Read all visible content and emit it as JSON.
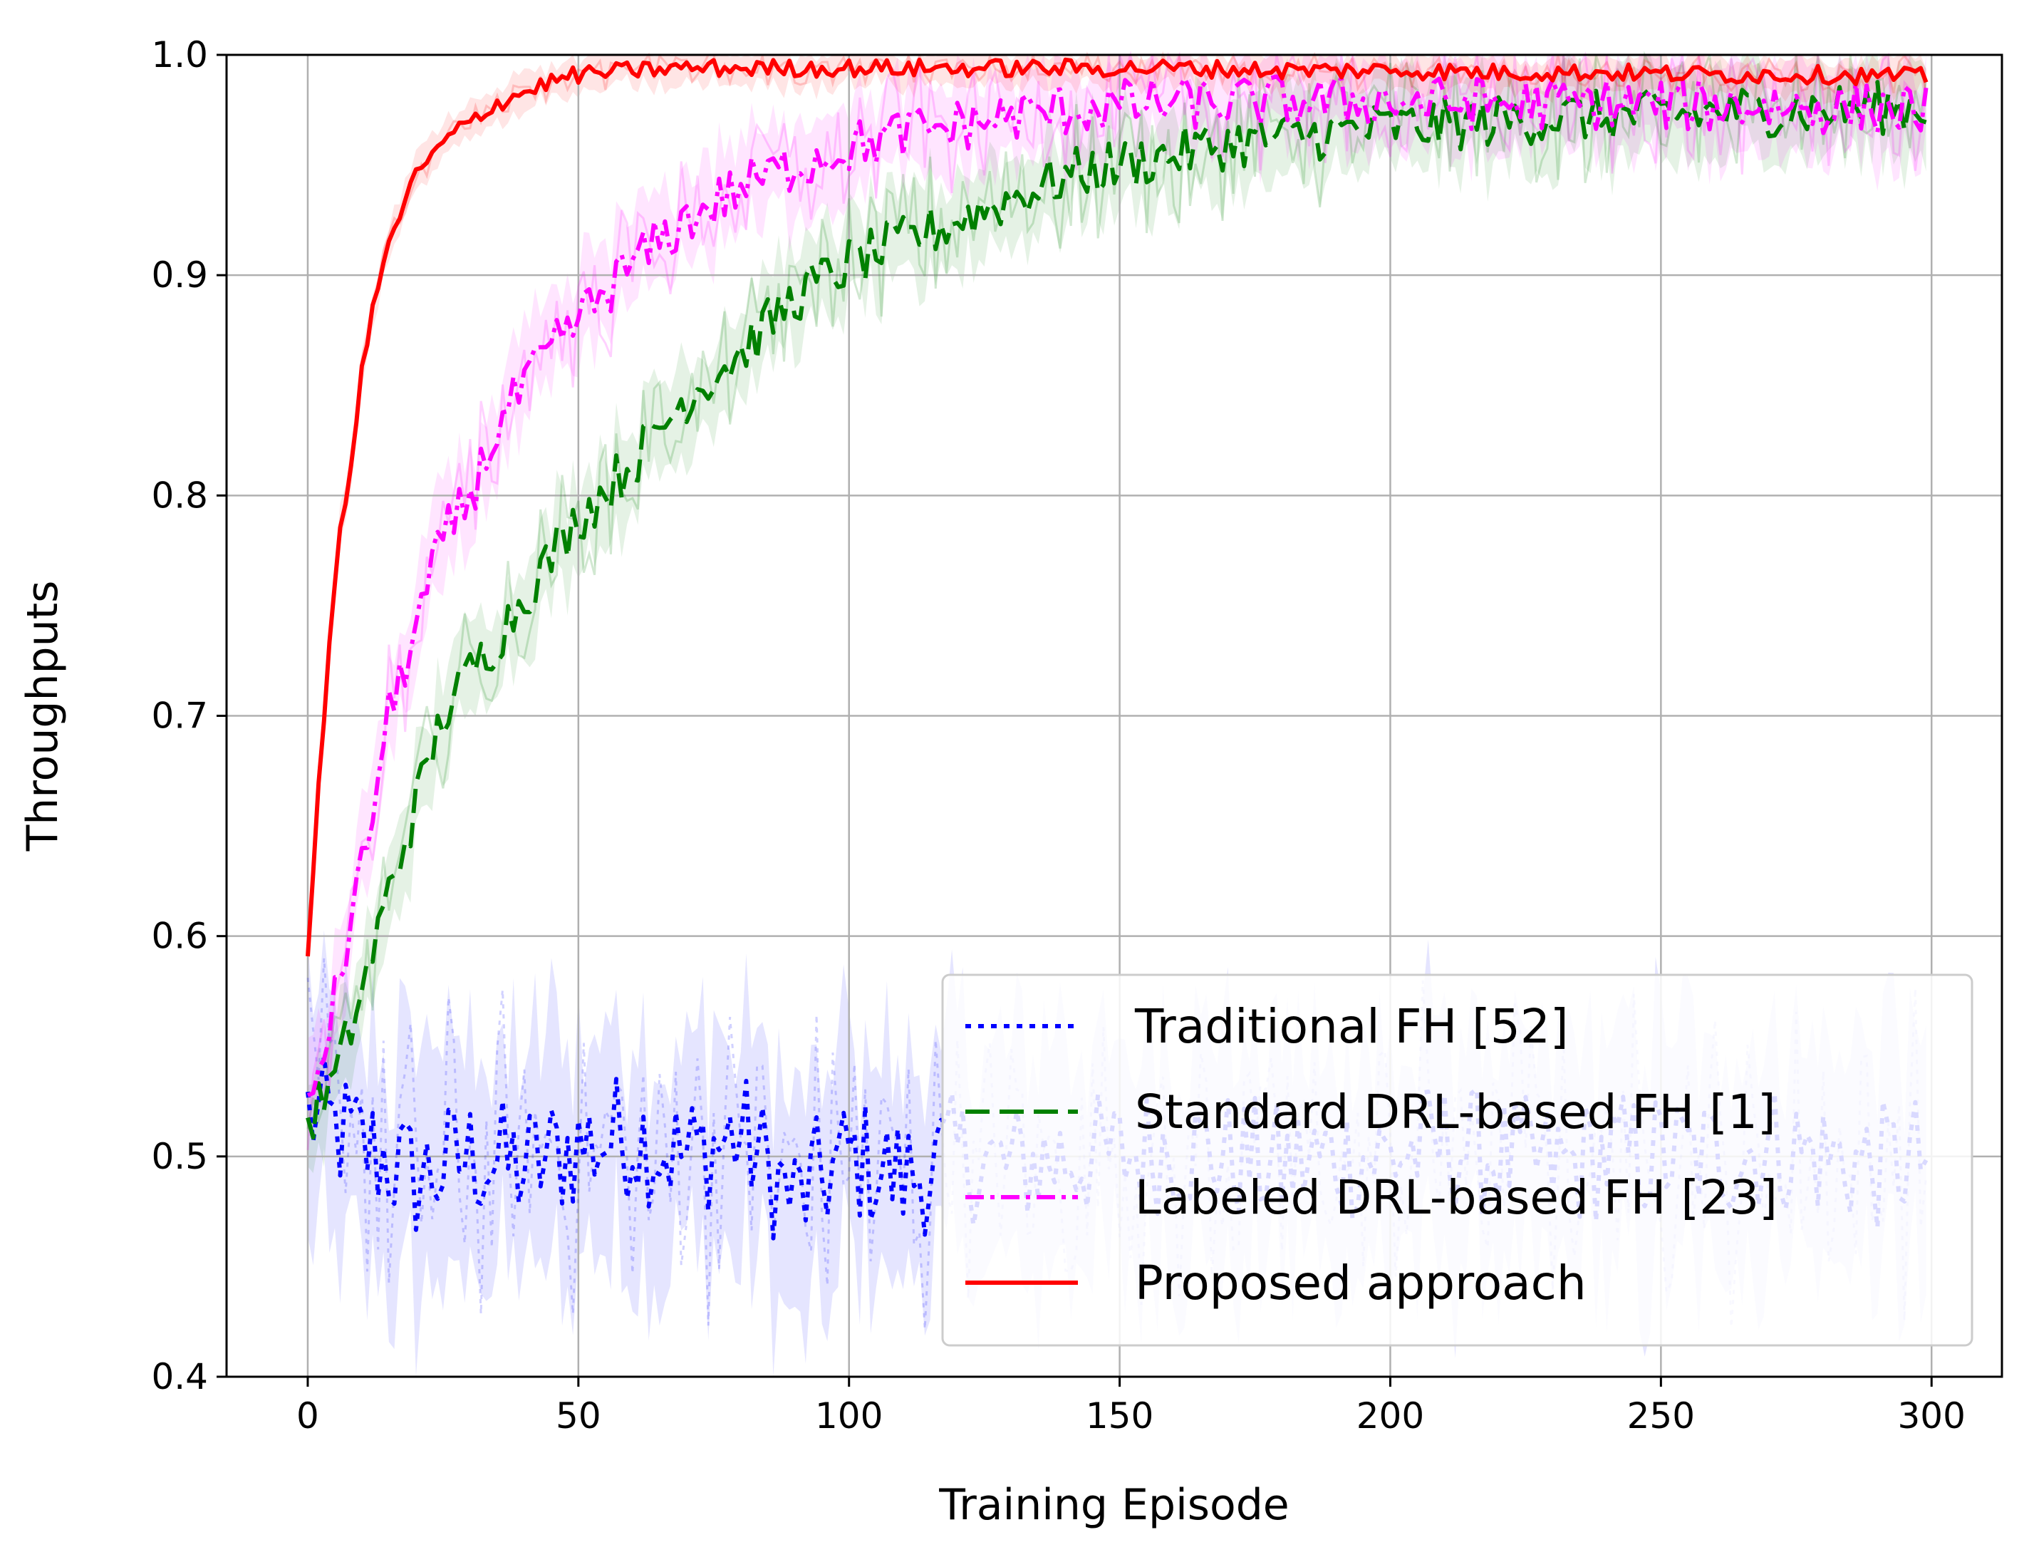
{
  "chart_data": {
    "type": "line",
    "title": "",
    "xlabel": "Training Episode",
    "ylabel": "Throughputs",
    "xlim": [
      -15,
      313
    ],
    "ylim": [
      0.4,
      1.0
    ],
    "xticks": [
      0,
      50,
      100,
      150,
      200,
      250,
      300
    ],
    "yticks": [
      0.4,
      0.5,
      0.6,
      0.7,
      0.8,
      0.9,
      1.0
    ],
    "xtick_labels": [
      "0",
      "50",
      "100",
      "150",
      "200",
      "250",
      "300"
    ],
    "ytick_labels": [
      "0.4",
      "0.5",
      "0.6",
      "0.7",
      "0.8",
      "0.9",
      "1.0"
    ],
    "grid": true,
    "legend_position": "lower-right",
    "series": [
      {
        "name": "Traditional FH [52]",
        "color": "#0000ff",
        "style": "dotted",
        "x": [
          0,
          10,
          20,
          30,
          40,
          50,
          60,
          70,
          80,
          90,
          100,
          110,
          120,
          130,
          140,
          150,
          160,
          170,
          180,
          190,
          200,
          210,
          220,
          230,
          240,
          250,
          260,
          270,
          280,
          290,
          299
        ],
        "y": [
          0.52,
          0.505,
          0.49,
          0.5,
          0.495,
          0.505,
          0.51,
          0.5,
          0.51,
          0.48,
          0.5,
          0.49,
          0.5,
          0.495,
          0.5,
          0.5,
          0.505,
          0.5,
          0.495,
          0.5,
          0.5,
          0.505,
          0.5,
          0.495,
          0.5,
          0.5,
          0.5,
          0.505,
          0.5,
          0.495,
          0.5
        ],
        "band": 0.05
      },
      {
        "name": "Standard DRL-based FH [1]",
        "color": "#008000",
        "style": "dashed",
        "x": [
          0,
          5,
          10,
          15,
          20,
          25,
          30,
          35,
          40,
          50,
          60,
          70,
          80,
          90,
          100,
          110,
          120,
          130,
          140,
          150,
          160,
          170,
          180,
          190,
          200,
          210,
          220,
          230,
          240,
          250,
          260,
          270,
          280,
          290,
          299
        ],
        "y": [
          0.515,
          0.535,
          0.575,
          0.62,
          0.66,
          0.7,
          0.72,
          0.735,
          0.755,
          0.79,
          0.815,
          0.845,
          0.865,
          0.89,
          0.905,
          0.915,
          0.925,
          0.935,
          0.945,
          0.95,
          0.955,
          0.96,
          0.962,
          0.965,
          0.967,
          0.968,
          0.97,
          0.972,
          0.972,
          0.973,
          0.974,
          0.975,
          0.975,
          0.976,
          0.976
        ],
        "band": 0.02
      },
      {
        "name": "Labeled DRL-based FH [23]",
        "color": "#ff00ff",
        "style": "dashdot",
        "x": [
          0,
          5,
          10,
          15,
          20,
          25,
          30,
          35,
          40,
          50,
          60,
          70,
          80,
          90,
          100,
          110,
          120,
          130,
          140,
          150,
          160,
          170,
          180,
          190,
          200,
          210,
          220,
          230,
          240,
          250,
          260,
          270,
          280,
          290,
          299
        ],
        "y": [
          0.52,
          0.57,
          0.63,
          0.7,
          0.74,
          0.78,
          0.8,
          0.83,
          0.85,
          0.88,
          0.905,
          0.925,
          0.94,
          0.95,
          0.958,
          0.964,
          0.968,
          0.972,
          0.975,
          0.977,
          0.978,
          0.978,
          0.979,
          0.979,
          0.979,
          0.978,
          0.978,
          0.978,
          0.978,
          0.977,
          0.977,
          0.977,
          0.976,
          0.976,
          0.975
        ],
        "band": 0.02
      },
      {
        "name": "Proposed approach",
        "color": "#ff0000",
        "style": "solid",
        "x": [
          0,
          2,
          4,
          6,
          8,
          10,
          12,
          14,
          16,
          18,
          20,
          25,
          30,
          35,
          40,
          45,
          50,
          60,
          70,
          80,
          90,
          100,
          120,
          140,
          160,
          180,
          200,
          220,
          240,
          260,
          280,
          299
        ],
        "y": [
          0.587,
          0.67,
          0.73,
          0.785,
          0.815,
          0.855,
          0.885,
          0.905,
          0.92,
          0.935,
          0.945,
          0.96,
          0.97,
          0.978,
          0.983,
          0.988,
          0.991,
          0.993,
          0.994,
          0.994,
          0.994,
          0.994,
          0.994,
          0.994,
          0.994,
          0.993,
          0.993,
          0.992,
          0.992,
          0.991,
          0.991,
          0.99
        ],
        "band": 0.008
      }
    ]
  }
}
